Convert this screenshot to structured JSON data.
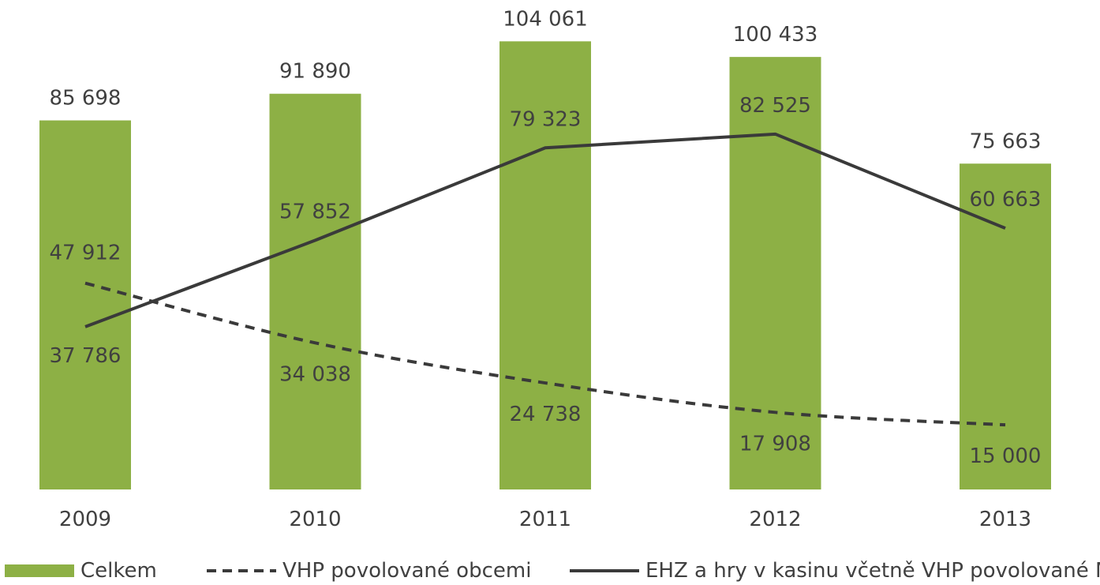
{
  "chart_data": {
    "type": "bar",
    "categories": [
      "2009",
      "2010",
      "2011",
      "2012",
      "2013"
    ],
    "ylim": [
      0,
      110000
    ],
    "grid": false,
    "legend_position": "bottom",
    "series": [
      {
        "name": "Celkem",
        "type": "bar",
        "values": [
          85698,
          91890,
          104061,
          100433,
          75663
        ],
        "labels": [
          "85 698",
          "91 890",
          "104 061",
          "100 433",
          "75 663"
        ],
        "color": "#8db045"
      },
      {
        "name": "VHP povolované obcemi",
        "type": "line",
        "style": "dashed",
        "values": [
          47912,
          34038,
          24738,
          17908,
          15000
        ],
        "labels": [
          "47 912",
          "34 038",
          "24 738",
          "17 908",
          "15 000"
        ],
        "color": "#3a3a3a"
      },
      {
        "name": "EHZ a hry v kasinu včetně VHP povolované MF",
        "type": "line",
        "style": "solid",
        "values": [
          37786,
          57852,
          79323,
          82525,
          60663
        ],
        "labels": [
          "37 786",
          "57 852",
          "79 323",
          "82 525",
          "60 663"
        ],
        "color": "#3a3a3a"
      }
    ]
  }
}
